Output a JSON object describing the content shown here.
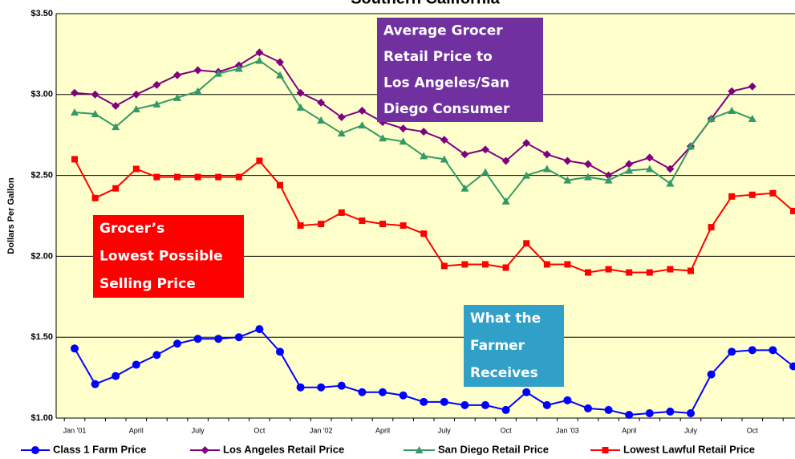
{
  "chart_data": {
    "type": "line",
    "title": "Southern California",
    "ylabel": "Dollars Per Gallon",
    "categories": [
      "Jan '01",
      null,
      null,
      "April",
      null,
      null,
      "July",
      null,
      null,
      "Oct",
      null,
      null,
      "Jan '02",
      null,
      null,
      "April",
      null,
      null,
      "July",
      null,
      null,
      "Oct",
      null,
      null,
      "Jan '03",
      null,
      null,
      "April",
      null,
      null,
      "July",
      null,
      null,
      "Oct",
      null,
      null
    ],
    "ylim": [
      1.0,
      3.5
    ],
    "yticks": [
      {
        "value": 1.0,
        "label": "$1.00"
      },
      {
        "value": 1.5,
        "label": "$1.50"
      },
      {
        "value": 2.0,
        "label": "$2.00"
      },
      {
        "value": 2.5,
        "label": "$2.50"
      },
      {
        "value": 3.0,
        "label": "$3.00"
      },
      {
        "value": 3.5,
        "label": "$3.50"
      }
    ],
    "grid": true,
    "legend": "bottom",
    "series": [
      {
        "name": "Class 1 Farm Price",
        "color": "#0000ff",
        "marker": "circle",
        "values": [
          1.43,
          1.21,
          1.26,
          1.33,
          1.39,
          1.46,
          1.49,
          1.49,
          1.5,
          1.55,
          1.41,
          1.19,
          1.19,
          1.2,
          1.16,
          1.16,
          1.14,
          1.1,
          1.1,
          1.08,
          1.08,
          1.05,
          1.16,
          1.08,
          1.11,
          1.06,
          1.05,
          1.02,
          1.03,
          1.04,
          1.03,
          1.27,
          1.41,
          1.42,
          1.42,
          1.32
        ]
      },
      {
        "name": "Los Angeles Retail Price",
        "color": "#800080",
        "marker": "diamond",
        "values": [
          3.01,
          3.0,
          2.93,
          3.0,
          3.06,
          3.12,
          3.15,
          3.14,
          3.18,
          3.26,
          3.2,
          3.01,
          2.95,
          2.86,
          2.9,
          2.83,
          2.79,
          2.77,
          2.72,
          2.63,
          2.66,
          2.59,
          2.7,
          2.63,
          2.59,
          2.57,
          2.5,
          2.57,
          2.61,
          2.54,
          2.68,
          2.85,
          3.02,
          3.05,
          null,
          null
        ]
      },
      {
        "name": "San Diego Retail Price",
        "color": "#339966",
        "marker": "triangle",
        "values": [
          2.89,
          2.88,
          2.8,
          2.91,
          2.94,
          2.98,
          3.02,
          3.13,
          3.16,
          3.21,
          3.12,
          2.92,
          2.84,
          2.76,
          2.81,
          2.73,
          2.71,
          2.62,
          2.6,
          2.42,
          2.52,
          2.34,
          2.5,
          2.54,
          2.47,
          2.49,
          2.47,
          2.53,
          2.54,
          2.45,
          2.68,
          2.85,
          2.9,
          2.85,
          null,
          null
        ]
      },
      {
        "name": "Lowest Lawful Retail Price",
        "color": "#ff0000",
        "marker": "square",
        "values": [
          2.6,
          2.36,
          2.42,
          2.54,
          2.49,
          2.49,
          2.49,
          2.49,
          2.49,
          2.59,
          2.44,
          2.19,
          2.2,
          2.27,
          2.22,
          2.2,
          2.19,
          2.14,
          1.94,
          1.95,
          1.95,
          1.93,
          2.08,
          1.95,
          1.95,
          1.9,
          1.92,
          1.9,
          1.9,
          1.92,
          1.91,
          2.18,
          2.37,
          2.38,
          2.39,
          2.28
        ]
      }
    ],
    "annotations": [
      {
        "lines": [
          "Average Grocer",
          "Retail Price to",
          "Los Angeles/San",
          "Diego Consumer"
        ],
        "color": "#7030a0"
      },
      {
        "lines": [
          "Grocer’s",
          "Lowest Possible",
          "Selling Price"
        ],
        "color": "#ff0000"
      },
      {
        "lines": [
          "What the",
          "Farmer",
          "Receives"
        ],
        "color": "#31a0c8"
      }
    ]
  }
}
